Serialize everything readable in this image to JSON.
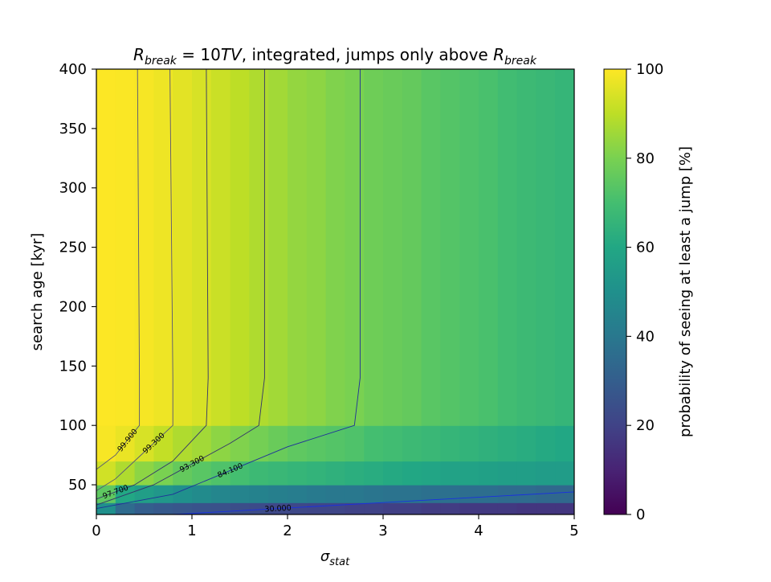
{
  "chart_data": {
    "type": "heatmap",
    "title": {
      "r1": "R",
      "r1_sub": "break",
      "eq": " = 10",
      "tv": "TV",
      "rest": ", integrated, jumps only above ",
      "r2": "R",
      "r2_sub": "break"
    },
    "xlabel": {
      "symbol": "σ",
      "sub": "stat"
    },
    "ylabel": "search age [kyr]",
    "colorbar_label": "probability of seeing at least a jump [%]",
    "colormap": "viridis",
    "xlim": [
      0,
      5
    ],
    "ylim": [
      25,
      400
    ],
    "clim": [
      0,
      100
    ],
    "x_ticks": [
      0,
      1,
      2,
      3,
      4,
      5
    ],
    "y_ticks": [
      50,
      100,
      150,
      200,
      250,
      300,
      350,
      400
    ],
    "colorbar_ticks": [
      0,
      20,
      40,
      60,
      80,
      100
    ],
    "x_edges": [
      0,
      0.2,
      0.4,
      0.6,
      0.8,
      1.0,
      1.2,
      1.4,
      1.6,
      1.8,
      2.0,
      2.2,
      2.4,
      2.6,
      2.8,
      3.0,
      3.2,
      3.4,
      3.6,
      3.8,
      4.0,
      4.2,
      4.4,
      4.6,
      4.8,
      5.0
    ],
    "y_edges": [
      25,
      35,
      50,
      70,
      100,
      400
    ],
    "z": [
      [
        50,
        35,
        30,
        28,
        27,
        26,
        25,
        24,
        23,
        22,
        22,
        21,
        21,
        20,
        20,
        19,
        19,
        18,
        18,
        17,
        17,
        17,
        16,
        16,
        16
      ],
      [
        75,
        60,
        56,
        53,
        50,
        48,
        46,
        45,
        44,
        43,
        42,
        41,
        40,
        40,
        39,
        38,
        38,
        37,
        37,
        36,
        36,
        35,
        35,
        34,
        34
      ],
      [
        93,
        88,
        83,
        80,
        76,
        74,
        72,
        70,
        68,
        67,
        66,
        65,
        64,
        63,
        62,
        61,
        60,
        59,
        58,
        58,
        57,
        56,
        56,
        55,
        55
      ],
      [
        99,
        97,
        94,
        91,
        88,
        86,
        83,
        81,
        79,
        77,
        75,
        74,
        73,
        72,
        70,
        69,
        68,
        67,
        66,
        65,
        64,
        63,
        62,
        61,
        60
      ],
      [
        99.9,
        99.6,
        98.9,
        97.6,
        96,
        94,
        92,
        90,
        88,
        86,
        84,
        83,
        81,
        80,
        78,
        77,
        76,
        74,
        73,
        72,
        71,
        69,
        68,
        67,
        66
      ]
    ],
    "contours": [
      {
        "label": "99.900",
        "points": [
          [
            0,
            63
          ],
          [
            0.2,
            75
          ],
          [
            0.45,
            100
          ],
          [
            0.45,
            140
          ],
          [
            0.43,
            400
          ]
        ]
      },
      {
        "label": "99.300",
        "points": [
          [
            0,
            45
          ],
          [
            0.2,
            55
          ],
          [
            0.4,
            70
          ],
          [
            0.8,
            100
          ],
          [
            0.8,
            140
          ],
          [
            0.77,
            400
          ]
        ]
      },
      {
        "label": "97.700",
        "points": [
          [
            0,
            38
          ],
          [
            0.4,
            50
          ],
          [
            0.8,
            70
          ],
          [
            1.15,
            100
          ],
          [
            1.17,
            140
          ],
          [
            1.15,
            400
          ]
        ]
      },
      {
        "label": "93.300",
        "points": [
          [
            0,
            33
          ],
          [
            0.6,
            50
          ],
          [
            1.4,
            85
          ],
          [
            1.7,
            100
          ],
          [
            1.76,
            140
          ],
          [
            1.76,
            400
          ]
        ]
      },
      {
        "label": "84.100",
        "points": [
          [
            0,
            30
          ],
          [
            0.8,
            42
          ],
          [
            2.0,
            82
          ],
          [
            2.7,
            100
          ],
          [
            2.76,
            140
          ],
          [
            2.76,
            400
          ]
        ]
      },
      {
        "label": "30.000",
        "points": [
          [
            0.8,
            25
          ],
          [
            3.0,
            35
          ],
          [
            5,
            44
          ]
        ]
      }
    ]
  }
}
